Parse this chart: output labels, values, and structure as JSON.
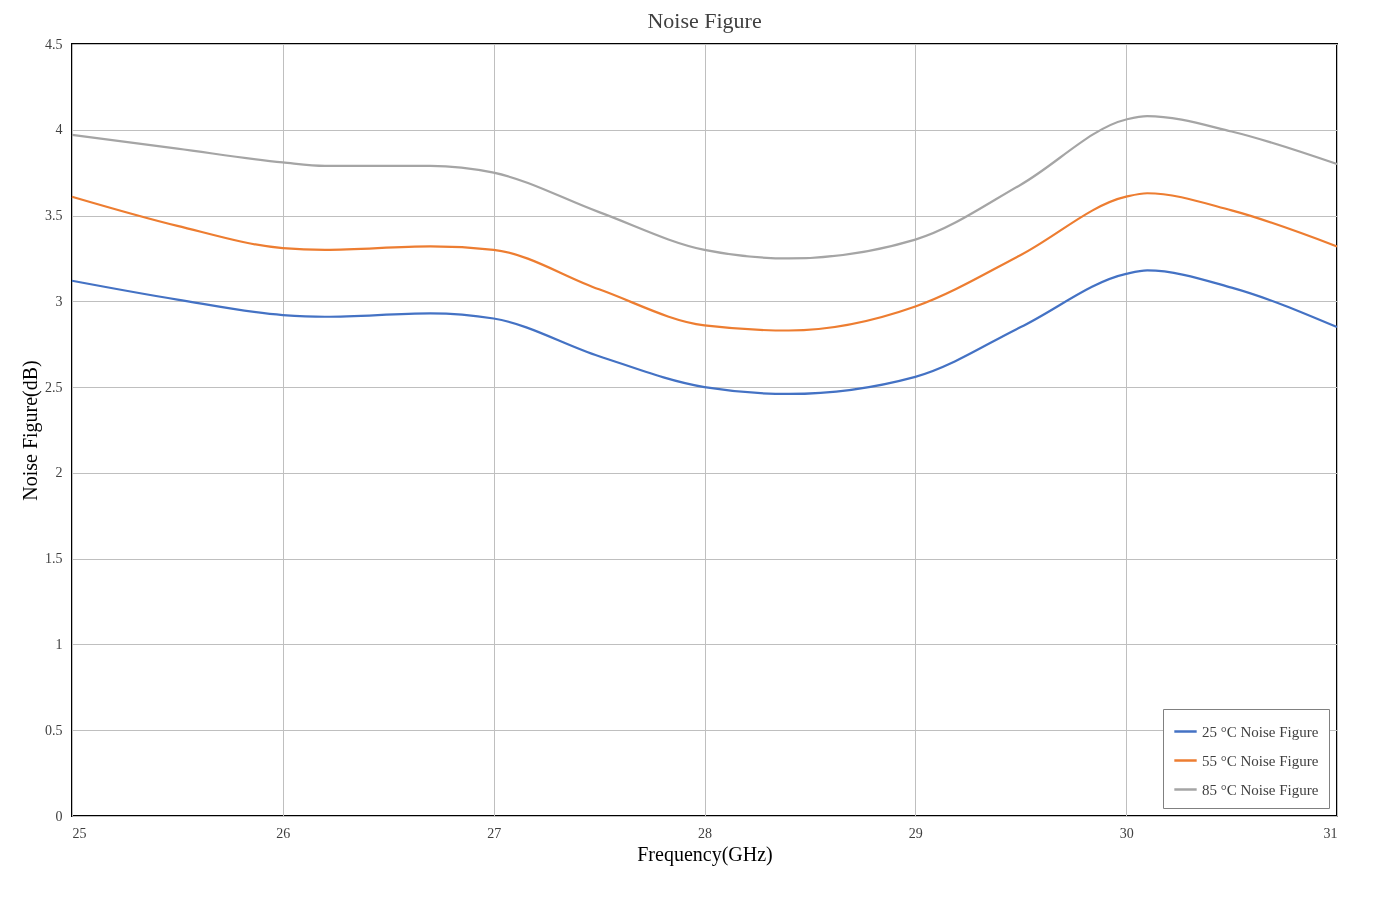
{
  "chart_data": {
    "type": "line",
    "title": "Noise Figure",
    "xlabel": "Frequency(GHz)",
    "ylabel": "Noise Figure(dB)",
    "x": [
      25,
      25.5,
      26,
      26.2,
      26.7,
      27,
      27.5,
      28,
      28.4,
      29,
      29.5,
      30,
      30.1,
      30.5,
      31
    ],
    "series": [
      {
        "name": "25 °C Noise Figure",
        "color": "#4472c4",
        "values": [
          3.12,
          3.01,
          2.92,
          2.91,
          2.93,
          2.9,
          2.68,
          2.5,
          2.46,
          2.56,
          2.85,
          3.16,
          3.18,
          3.08,
          2.85
        ]
      },
      {
        "name": "55 °C Noise Figure",
        "color": "#ed7d31",
        "values": [
          3.61,
          3.44,
          3.31,
          3.3,
          3.32,
          3.3,
          3.07,
          2.86,
          2.83,
          2.97,
          3.27,
          3.61,
          3.63,
          3.53,
          3.32
        ]
      },
      {
        "name": "85 °C Noise Figure",
        "color": "#a5a5a5",
        "values": [
          3.97,
          3.89,
          3.81,
          3.79,
          3.79,
          3.75,
          3.52,
          3.3,
          3.25,
          3.36,
          3.68,
          4.06,
          4.08,
          3.99,
          3.8
        ]
      }
    ],
    "xlim": [
      25,
      31
    ],
    "xticks": [
      25,
      26,
      27,
      28,
      29,
      30,
      31
    ],
    "ylim": [
      0,
      4.5
    ],
    "yticks": [
      0,
      0.5,
      1,
      1.5,
      2,
      2.5,
      3,
      3.5,
      4,
      4.5
    ],
    "grid": true,
    "legend": "bottom right",
    "line_style": "solid"
  }
}
